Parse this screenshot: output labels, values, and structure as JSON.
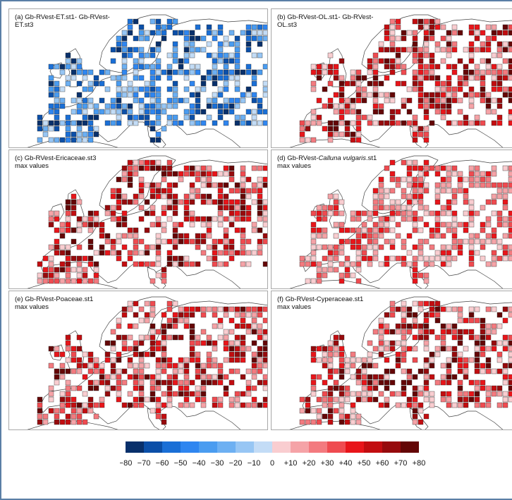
{
  "panels": [
    {
      "id": "a",
      "label_line1": "(a) Gb-RVest-ET.st1- Gb-RVest-",
      "label_line2": "ET.st3",
      "label_line3": "",
      "palette": "blue",
      "seed": 11
    },
    {
      "id": "b",
      "label_line1": "(b) Gb-RVest-OL.st1- Gb-RVest-",
      "label_line2": "OL.st3",
      "label_line3": "",
      "palette": "red",
      "seed": 23
    },
    {
      "id": "c",
      "label_line1": "(c) Gb-RVest-Ericaceae.st3",
      "label_line2": "max values",
      "label_line3": "",
      "palette": "red",
      "seed": 37
    },
    {
      "id": "d",
      "label_line1": "(d) Gb-RVest-",
      "label_italic": "Calluna vulgaris",
      "label_after": ".st1",
      "label_line2": "max values",
      "label_line3": "",
      "palette": "redlight",
      "seed": 41
    },
    {
      "id": "e",
      "label_line1": "(e) Gb-RVest-Poaceae.st1",
      "label_line2": "max values",
      "label_line3": "",
      "palette": "red",
      "seed": 53
    },
    {
      "id": "f",
      "label_line1": "(f) Gb-RVest-Cyperaceae.st1",
      "label_line2": "max values",
      "label_line3": "",
      "palette": "red",
      "seed": 67
    }
  ],
  "legend": {
    "colors": [
      "#08306b",
      "#0b4fa8",
      "#1a6fd6",
      "#2f86f0",
      "#4a9cf0",
      "#6db0f2",
      "#97c6f4",
      "#c3dcf6",
      "#f9cdd0",
      "#f5a3a7",
      "#f37a7f",
      "#ef4b50",
      "#e8151a",
      "#c20d10",
      "#960a0c",
      "#640606"
    ],
    "ticks": [
      "−80",
      "−70",
      "−60",
      "−50",
      "−40",
      "−30",
      "−20",
      "−10",
      "0",
      "+10",
      "+20",
      "+30",
      "+40",
      "+50",
      "+60",
      "+70",
      "+80"
    ]
  }
}
